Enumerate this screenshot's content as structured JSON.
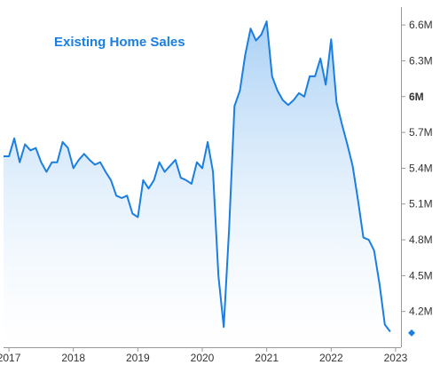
{
  "chart_data": {
    "type": "area",
    "title": "Existing Home Sales",
    "xlabel": "",
    "ylabel": "",
    "y_axis_position": "right",
    "grid": false,
    "legend": "none",
    "colors": {
      "line": "#1a7fe0",
      "fill_top": "#a9d0f5",
      "fill_bottom": "#ffffff",
      "title": "#1a7fe0",
      "axis": "#999999",
      "marker": "#1a7fe0"
    },
    "ylim": [
      3.9,
      6.75
    ],
    "y_ticks": [
      {
        "value": 4.2,
        "label": "4.2M",
        "bold": false
      },
      {
        "value": 4.5,
        "label": "4.5M",
        "bold": false
      },
      {
        "value": 4.8,
        "label": "4.8M",
        "bold": false
      },
      {
        "value": 5.1,
        "label": "5.1M",
        "bold": false
      },
      {
        "value": 5.4,
        "label": "5.4M",
        "bold": false
      },
      {
        "value": 5.7,
        "label": "5.7M",
        "bold": false
      },
      {
        "value": 6.0,
        "label": "6M",
        "bold": true
      },
      {
        "value": 6.3,
        "label": "6.3M",
        "bold": false
      },
      {
        "value": 6.6,
        "label": "6.6M",
        "bold": false
      }
    ],
    "xlim": [
      "2016-12",
      "2023-02"
    ],
    "x_ticks": [
      {
        "date": "2017-01",
        "label": "2017"
      },
      {
        "date": "2018-01",
        "label": "2018"
      },
      {
        "date": "2019-01",
        "label": "2019"
      },
      {
        "date": "2020-01",
        "label": "2020"
      },
      {
        "date": "2021-01",
        "label": "2021"
      },
      {
        "date": "2022-01",
        "label": "2022"
      },
      {
        "date": "2023-01",
        "label": "2023"
      }
    ],
    "series": [
      {
        "unit": "M",
        "points": [
          [
            "2016-12",
            5.5
          ],
          [
            "2017-01",
            5.5
          ],
          [
            "2017-02",
            5.65
          ],
          [
            "2017-03",
            5.45
          ],
          [
            "2017-04",
            5.6
          ],
          [
            "2017-05",
            5.55
          ],
          [
            "2017-06",
            5.57
          ],
          [
            "2017-07",
            5.45
          ],
          [
            "2017-08",
            5.37
          ],
          [
            "2017-09",
            5.45
          ],
          [
            "2017-10",
            5.45
          ],
          [
            "2017-11",
            5.62
          ],
          [
            "2017-12",
            5.57
          ],
          [
            "2018-01",
            5.4
          ],
          [
            "2018-02",
            5.47
          ],
          [
            "2018-03",
            5.52
          ],
          [
            "2018-04",
            5.47
          ],
          [
            "2018-05",
            5.43
          ],
          [
            "2018-06",
            5.45
          ],
          [
            "2018-07",
            5.37
          ],
          [
            "2018-08",
            5.3
          ],
          [
            "2018-09",
            5.17
          ],
          [
            "2018-10",
            5.15
          ],
          [
            "2018-11",
            5.17
          ],
          [
            "2018-12",
            5.02
          ],
          [
            "2019-01",
            4.99
          ],
          [
            "2019-02",
            5.3
          ],
          [
            "2019-03",
            5.23
          ],
          [
            "2019-04",
            5.3
          ],
          [
            "2019-05",
            5.45
          ],
          [
            "2019-06",
            5.37
          ],
          [
            "2019-07",
            5.42
          ],
          [
            "2019-08",
            5.47
          ],
          [
            "2019-09",
            5.32
          ],
          [
            "2019-10",
            5.3
          ],
          [
            "2019-11",
            5.27
          ],
          [
            "2019-12",
            5.45
          ],
          [
            "2020-01",
            5.4
          ],
          [
            "2020-02",
            5.62
          ],
          [
            "2020-03",
            5.37
          ],
          [
            "2020-04",
            4.5
          ],
          [
            "2020-05",
            4.07
          ],
          [
            "2020-06",
            4.9
          ],
          [
            "2020-07",
            5.92
          ],
          [
            "2020-08",
            6.05
          ],
          [
            "2020-09",
            6.35
          ],
          [
            "2020-10",
            6.57
          ],
          [
            "2020-11",
            6.47
          ],
          [
            "2020-12",
            6.52
          ],
          [
            "2021-01",
            6.63
          ],
          [
            "2021-02",
            6.17
          ],
          [
            "2021-03",
            6.05
          ],
          [
            "2021-04",
            5.97
          ],
          [
            "2021-05",
            5.93
          ],
          [
            "2021-06",
            5.97
          ],
          [
            "2021-07",
            6.03
          ],
          [
            "2021-08",
            6.0
          ],
          [
            "2021-09",
            6.17
          ],
          [
            "2021-10",
            6.17
          ],
          [
            "2021-11",
            6.32
          ],
          [
            "2021-12",
            6.1
          ],
          [
            "2022-01",
            6.48
          ],
          [
            "2022-02",
            5.95
          ],
          [
            "2022-03",
            5.77
          ],
          [
            "2022-04",
            5.6
          ],
          [
            "2022-05",
            5.42
          ],
          [
            "2022-06",
            5.13
          ],
          [
            "2022-07",
            4.82
          ],
          [
            "2022-08",
            4.8
          ],
          [
            "2022-09",
            4.71
          ],
          [
            "2022-10",
            4.43
          ],
          [
            "2022-11",
            4.09
          ],
          [
            "2022-12",
            4.03
          ]
        ]
      }
    ],
    "latest_marker": {
      "date": "2023-01",
      "value": 4.02
    }
  }
}
